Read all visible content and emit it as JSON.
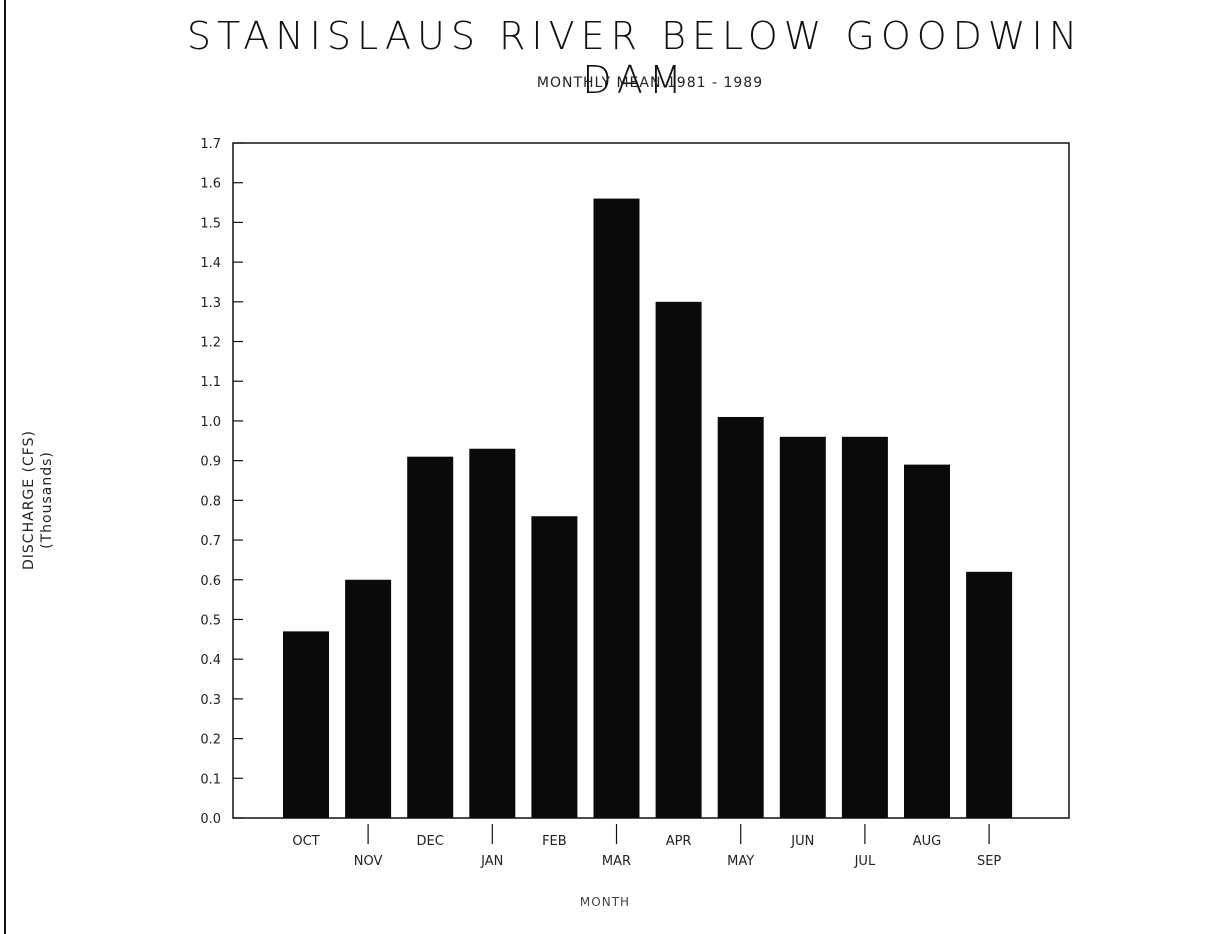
{
  "chart_data": {
    "type": "bar",
    "title": "STANISLAUS RIVER BELOW GOODWIN DAM",
    "subtitle": "MONTHLY MEAN 1981 - 1989",
    "ylabel": "DISCHARGE (CFS)",
    "ylabel_units": "(Thousands)",
    "xlabel": "MONTH",
    "ylim": [
      0,
      1.7
    ],
    "yticks": [
      "0.0",
      "0.1",
      "0.2",
      "0.3",
      "0.4",
      "0.5",
      "0.6",
      "0.7",
      "0.8",
      "0.9",
      "1.0",
      "1.1",
      "1.2",
      "1.3",
      "1.4",
      "1.5",
      "1.6",
      "1.7"
    ],
    "categories": [
      "OCT",
      "NOV",
      "DEC",
      "JAN",
      "FEB",
      "MAR",
      "APR",
      "MAY",
      "JUN",
      "JUL",
      "AUG",
      "SEP"
    ],
    "values": [
      0.47,
      0.6,
      0.91,
      0.93,
      0.76,
      1.56,
      1.3,
      1.01,
      0.96,
      0.96,
      0.89,
      0.62
    ],
    "grid": false,
    "bar_color": "#0a0a0a"
  }
}
